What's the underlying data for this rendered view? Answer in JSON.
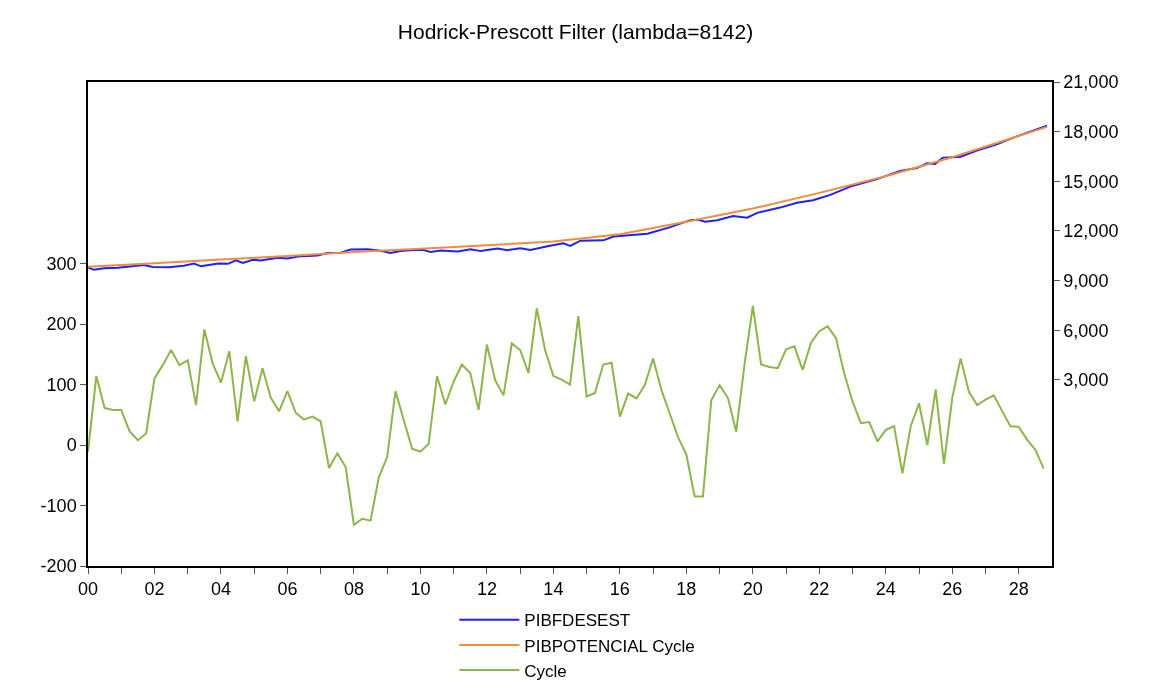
{
  "chart_data": {
    "type": "line",
    "title": "Hodrick-Prescott Filter (lambda=8142)",
    "xlim": [
      2000,
      2029
    ],
    "xticks": [
      {
        "value": 2000,
        "label": "00"
      },
      {
        "value": 2001,
        "label": null
      },
      {
        "value": 2002,
        "label": "02"
      },
      {
        "value": 2003,
        "label": null
      },
      {
        "value": 2004,
        "label": "04"
      },
      {
        "value": 2005,
        "label": null
      },
      {
        "value": 2006,
        "label": "06"
      },
      {
        "value": 2007,
        "label": null
      },
      {
        "value": 2008,
        "label": "08"
      },
      {
        "value": 2009,
        "label": null
      },
      {
        "value": 2010,
        "label": "10"
      },
      {
        "value": 2011,
        "label": null
      },
      {
        "value": 2012,
        "label": "12"
      },
      {
        "value": 2013,
        "label": null
      },
      {
        "value": 2014,
        "label": "14"
      },
      {
        "value": 2015,
        "label": null
      },
      {
        "value": 2016,
        "label": "16"
      },
      {
        "value": 2017,
        "label": null
      },
      {
        "value": 2018,
        "label": "18"
      },
      {
        "value": 2019,
        "label": null
      },
      {
        "value": 2020,
        "label": "20"
      },
      {
        "value": 2021,
        "label": null
      },
      {
        "value": 2022,
        "label": "22"
      },
      {
        "value": 2023,
        "label": null
      },
      {
        "value": 2024,
        "label": "24"
      },
      {
        "value": 2025,
        "label": null
      },
      {
        "value": 2026,
        "label": "26"
      },
      {
        "value": 2027,
        "label": null
      },
      {
        "value": 2028,
        "label": "28"
      }
    ],
    "ylim": [
      -200,
      600
    ],
    "yticks": [
      -200,
      -100,
      0,
      100,
      200,
      300
    ],
    "y2lim": [
      -8250,
      21000
    ],
    "y2ticks": [
      {
        "value": 3000,
        "label": "3,000"
      },
      {
        "value": 6000,
        "label": "6,000"
      },
      {
        "value": 9000,
        "label": "9,000"
      },
      {
        "value": 12000,
        "label": "12,000"
      },
      {
        "value": 15000,
        "label": "15,000"
      },
      {
        "value": 18000,
        "label": "18,000"
      },
      {
        "value": 21000,
        "label": "21,000"
      }
    ],
    "legend": "bottom",
    "marker": "none",
    "line_style": "solid",
    "series": [
      {
        "name": "PIBFDESEST",
        "color": "#1f1fff",
        "axis": "y2",
        "x": [
          2000.0,
          2000.18,
          2000.48,
          2000.9,
          2001.68,
          2001.95,
          2002.43,
          2002.88,
          2003.19,
          2003.4,
          2003.91,
          2004.21,
          2004.45,
          2004.66,
          2004.96,
          2005.2,
          2005.71,
          2006.01,
          2006.31,
          2006.91,
          2007.21,
          2007.6,
          2007.9,
          2008.41,
          2008.8,
          2009.1,
          2009.4,
          2009.79,
          2010.1,
          2010.31,
          2010.61,
          2011.12,
          2011.51,
          2011.81,
          2012.32,
          2012.62,
          2013.01,
          2013.31,
          2013.82,
          2014.3,
          2014.51,
          2014.81,
          2015.5,
          2015.81,
          2016.83,
          2017.52,
          2018.12,
          2018.36,
          2018.57,
          2018.93,
          2019.41,
          2019.83,
          2020.13,
          2020.82,
          2021.33,
          2021.81,
          2022.33,
          2022.93,
          2023.74,
          2024.43,
          2024.94,
          2025.24,
          2025.48,
          2025.72,
          2026.23,
          2026.74,
          2027.34,
          2027.82,
          2028.85
        ],
        "values": [
          9800,
          9650,
          9750,
          9780,
          9940,
          9820,
          9800,
          9900,
          10030,
          9860,
          10030,
          10010,
          10220,
          10070,
          10260,
          10210,
          10380,
          10340,
          10450,
          10510,
          10670,
          10680,
          10870,
          10890,
          10800,
          10670,
          10780,
          10850,
          10850,
          10720,
          10810,
          10760,
          10890,
          10780,
          10930,
          10840,
          10950,
          10850,
          11080,
          11250,
          11100,
          11410,
          11430,
          11660,
          11830,
          12230,
          12650,
          12670,
          12560,
          12650,
          12900,
          12800,
          13090,
          13410,
          13700,
          13850,
          14180,
          14680,
          15130,
          15630,
          15800,
          16090,
          16050,
          16430,
          16470,
          16850,
          17230,
          17620,
          18360
        ]
      },
      {
        "name": "PIBPOTENCIAL Cycle",
        "color": "#f08c3c",
        "axis": "y2",
        "x": [
          2000,
          2002,
          2004,
          2006,
          2008,
          2010,
          2012,
          2014,
          2016,
          2018,
          2020,
          2022,
          2024,
          2026,
          2028.85
        ],
        "values": [
          9840,
          10050,
          10270,
          10490,
          10720,
          10930,
          11130,
          11360,
          11800,
          12560,
          13350,
          14300,
          15300,
          16450,
          18290
        ]
      },
      {
        "name": "Cycle",
        "color": "#8db64a",
        "x": [
          2000,
          2000.25,
          2000.5,
          2000.75,
          2001,
          2001.25,
          2001.5,
          2001.75,
          2002,
          2002.25,
          2002.5,
          2002.75,
          2003,
          2003.25,
          2003.5,
          2003.75,
          2004,
          2004.25,
          2004.5,
          2004.75,
          2005,
          2005.25,
          2005.5,
          2005.75,
          2006,
          2006.25,
          2006.5,
          2006.75,
          2007,
          2007.25,
          2007.5,
          2007.75,
          2008,
          2008.25,
          2008.5,
          2008.75,
          2009,
          2009.25,
          2009.5,
          2009.75,
          2010,
          2010.25,
          2010.5,
          2010.75,
          2011,
          2011.25,
          2011.5,
          2011.75,
          2012,
          2012.25,
          2012.5,
          2012.75,
          2013,
          2013.25,
          2013.5,
          2013.75,
          2014,
          2014.25,
          2014.5,
          2014.75,
          2015,
          2015.25,
          2015.5,
          2015.75,
          2016,
          2016.25,
          2016.5,
          2016.75,
          2017,
          2017.25,
          2017.5,
          2017.75,
          2018,
          2018.25,
          2018.5,
          2018.75,
          2019,
          2019.25,
          2019.5,
          2019.75,
          2020,
          2020.25,
          2020.5,
          2020.75,
          2021,
          2021.25,
          2021.5,
          2021.75,
          2022,
          2022.25,
          2022.5,
          2022.75,
          2023,
          2023.25,
          2023.5,
          2023.75,
          2024,
          2024.25,
          2024.5,
          2024.75,
          2025,
          2025.25,
          2025.5,
          2025.75,
          2026,
          2026.25,
          2026.5,
          2026.75,
          2027,
          2027.25,
          2027.5,
          2027.75,
          2028,
          2028.25,
          2028.5,
          2028.75
        ],
        "values": [
          -11,
          114,
          61,
          58,
          58,
          23,
          8,
          19,
          110,
          132,
          157,
          132,
          140,
          66,
          191,
          135,
          103,
          155,
          39,
          147,
          72,
          127,
          78,
          56,
          89,
          53,
          42,
          47,
          39,
          -38,
          -14,
          -36,
          -132,
          -122,
          -125,
          -53,
          -20,
          89,
          41,
          -6,
          -11,
          2,
          114,
          67,
          105,
          133,
          119,
          58,
          166,
          107,
          82,
          168,
          157,
          119,
          226,
          157,
          114,
          108,
          100,
          213,
          80,
          86,
          133,
          136,
          47,
          85,
          77,
          99,
          143,
          91,
          52,
          13,
          -16,
          -85,
          -85,
          74,
          99,
          78,
          22,
          133,
          230,
          133,
          129,
          127,
          158,
          163,
          124,
          169,
          188,
          196,
          177,
          118,
          72,
          36,
          38,
          6,
          25,
          31,
          -47,
          31,
          69,
          0,
          92,
          -31,
          78,
          143,
          88,
          66,
          75,
          82,
          56,
          31,
          30,
          9,
          -8,
          -39
        ]
      }
    ]
  }
}
